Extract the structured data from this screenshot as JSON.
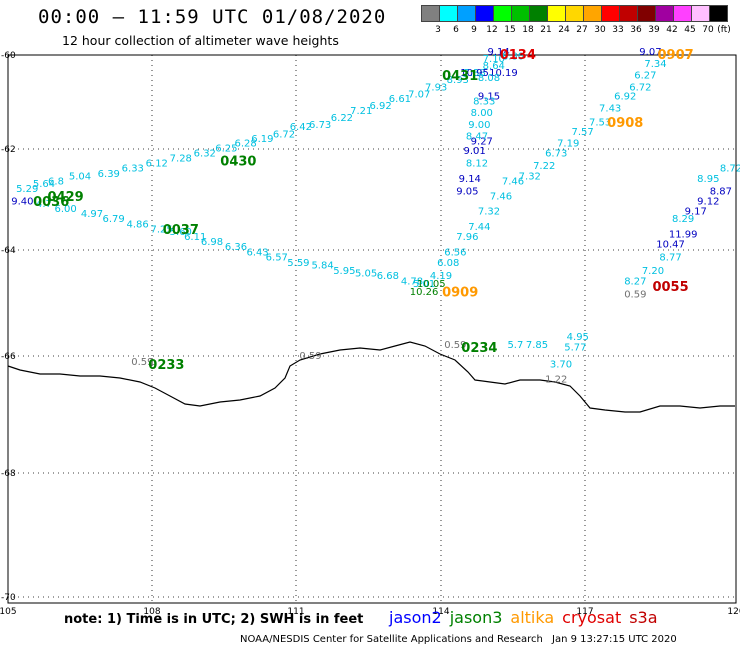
{
  "title": "00:00 – 11:59 UTC 01/08/2020",
  "subtitle": "12 hour collection of altimeter wave heights",
  "color_scale": {
    "labels": [
      "3",
      "6",
      "9",
      "12",
      "15",
      "18",
      "21",
      "24",
      "27",
      "30",
      "33",
      "36",
      "39",
      "42",
      "45",
      "70"
    ],
    "unit": "(ft)",
    "colors": [
      "#808080",
      "#00ffff",
      "#00a0ff",
      "#0000ff",
      "#00ff00",
      "#00c000",
      "#008000",
      "#ffff00",
      "#ffd700",
      "#ffa500",
      "#ff0000",
      "#c00000",
      "#800000",
      "#a000a0",
      "#ff40ff",
      "#ffc0ff",
      "#000000"
    ]
  },
  "axes": {
    "x_ticks": [
      "105",
      "108",
      "111",
      "114",
      "117",
      "120"
    ],
    "y_ticks": [
      "-60",
      "-62",
      "-64",
      "-66",
      "-68",
      "-70"
    ]
  },
  "note": "note: 1) Time is in UTC; 2) SWH is in feet",
  "legend": [
    {
      "name": "jason2",
      "color": "#0000ff"
    },
    {
      "name": "jason3",
      "color": "#008000"
    },
    {
      "name": "altika",
      "color": "#ff9900"
    },
    {
      "name": "cryosat",
      "color": "#e00000"
    },
    {
      "name": "s3a",
      "color": "#c00000"
    }
  ],
  "footer": {
    "agency": "NOAA/NESDIS Center for Satellite Applications and Research",
    "timestamp": "Jan  9 13:27:15 UTC 2020"
  },
  "time_labels": [
    {
      "text": "0134",
      "color": "#e00000",
      "lon": 115.6,
      "lat": -60.0
    },
    {
      "text": "0907",
      "color": "#ff9900",
      "lon": 118.8,
      "lat": -60.0
    },
    {
      "text": "0431",
      "color": "#008000",
      "lon": 114.4,
      "lat": -60.45
    },
    {
      "text": "0908",
      "color": "#ff9900",
      "lon": 117.8,
      "lat": -61.45
    },
    {
      "text": "0430",
      "color": "#008000",
      "lon": 109.8,
      "lat": -62.25
    },
    {
      "text": "0429",
      "color": "#008000",
      "lon": 106.2,
      "lat": -62.95
    },
    {
      "text": "0036",
      "color": "#008000",
      "lon": 105.9,
      "lat": -63.05
    },
    {
      "text": "0037",
      "color": "#008000",
      "lon": 108.6,
      "lat": -63.6
    },
    {
      "text": "0909",
      "color": "#ff9900",
      "lon": 114.4,
      "lat": -64.8
    },
    {
      "text": "0055",
      "color": "#c00000",
      "lon": 118.7,
      "lat": -64.7
    },
    {
      "text": "0234",
      "color": "#008000",
      "lon": 114.8,
      "lat": -65.85
    },
    {
      "text": "0233",
      "color": "#008000",
      "lon": 108.3,
      "lat": -66.15
    }
  ],
  "tracks": [
    {
      "color": "#00c0e0",
      "points": [
        {
          "lon": 105.4,
          "lat": -62.85,
          "v": "5.29"
        },
        {
          "lon": 105.75,
          "lat": -62.75,
          "v": "5.64"
        },
        {
          "lon": 106.0,
          "lat": -62.7,
          "v": "6.8"
        },
        {
          "lon": 106.5,
          "lat": -62.6,
          "v": "5.04"
        },
        {
          "lon": 107.1,
          "lat": -62.55,
          "v": "6.39"
        },
        {
          "lon": 107.6,
          "lat": -62.45,
          "v": "6.33"
        },
        {
          "lon": 108.1,
          "lat": -62.35,
          "v": "6.12"
        },
        {
          "lon": 108.6,
          "lat": -62.25,
          "v": "7.28"
        },
        {
          "lon": 109.1,
          "lat": -62.15,
          "v": "6.32"
        },
        {
          "lon": 109.55,
          "lat": -62.05,
          "v": "6.25"
        },
        {
          "lon": 109.95,
          "lat": -61.95,
          "v": "6.28"
        },
        {
          "lon": 110.3,
          "lat": -61.85,
          "v": "6.19"
        },
        {
          "lon": 110.75,
          "lat": -61.75,
          "v": "6.72"
        },
        {
          "lon": 111.1,
          "lat": -61.6,
          "v": "6.42"
        },
        {
          "lon": 111.5,
          "lat": -61.55,
          "v": "6.73"
        },
        {
          "lon": 111.95,
          "lat": -61.4,
          "v": "6.22"
        },
        {
          "lon": 112.35,
          "lat": -61.25,
          "v": "7.21"
        },
        {
          "lon": 112.75,
          "lat": -61.15,
          "v": "6.92"
        },
        {
          "lon": 113.15,
          "lat": -61.0,
          "v": "6.61"
        },
        {
          "lon": 113.55,
          "lat": -60.9,
          "v": "7.07"
        },
        {
          "lon": 113.9,
          "lat": -60.75,
          "v": "7.93"
        },
        {
          "lon": 114.35,
          "lat": -60.6,
          "v": "8.93"
        },
        {
          "lon": 114.7,
          "lat": -60.45,
          "v": "7.38"
        }
      ]
    },
    {
      "color": "#0000c0",
      "points": [
        {
          "lon": 105.3,
          "lat": -63.1,
          "v": "9.40"
        },
        {
          "lon": 115.2,
          "lat": -60.0,
          "v": "9.14"
        },
        {
          "lon": 114.7,
          "lat": -60.45,
          "v": "10.95"
        },
        {
          "lon": 115.3,
          "lat": -60.45,
          "v": "10.19"
        },
        {
          "lon": 115.0,
          "lat": -60.95,
          "v": "9.15"
        },
        {
          "lon": 114.85,
          "lat": -61.9,
          "v": "9.27"
        },
        {
          "lon": 114.7,
          "lat": -62.1,
          "v": "9.01"
        },
        {
          "lon": 114.6,
          "lat": -62.65,
          "v": "9.14"
        },
        {
          "lon": 114.55,
          "lat": -62.9,
          "v": "9.05"
        },
        {
          "lon": 118.3,
          "lat": -60.0,
          "v": "9.07"
        }
      ]
    },
    {
      "color": "#00c0e0",
      "points": [
        {
          "lon": 105.75,
          "lat": -63.15,
          "v": "4.7"
        },
        {
          "lon": 106.2,
          "lat": -63.25,
          "v": "6.00"
        },
        {
          "lon": 106.75,
          "lat": -63.35,
          "v": "4.97"
        },
        {
          "lon": 107.2,
          "lat": -63.45,
          "v": "6.79"
        },
        {
          "lon": 107.7,
          "lat": -63.55,
          "v": "4.86"
        },
        {
          "lon": 108.2,
          "lat": -63.65,
          "v": "7.25"
        },
        {
          "lon": 108.6,
          "lat": -63.7,
          "v": "5.60"
        },
        {
          "lon": 108.9,
          "lat": -63.8,
          "v": "6.11"
        },
        {
          "lon": 109.25,
          "lat": -63.9,
          "v": "6.98"
        },
        {
          "lon": 109.75,
          "lat": -64.0,
          "v": "6.36"
        },
        {
          "lon": 110.2,
          "lat": -64.1,
          "v": "6.43"
        },
        {
          "lon": 110.6,
          "lat": -64.2,
          "v": "6.57"
        },
        {
          "lon": 111.05,
          "lat": -64.3,
          "v": "5.59"
        },
        {
          "lon": 111.55,
          "lat": -64.35,
          "v": "5.84"
        },
        {
          "lon": 112.0,
          "lat": -64.45,
          "v": "5.95"
        },
        {
          "lon": 112.45,
          "lat": -64.5,
          "v": "5.05"
        },
        {
          "lon": 112.9,
          "lat": -64.55,
          "v": "6.68"
        },
        {
          "lon": 113.4,
          "lat": -64.65,
          "v": "4.78"
        },
        {
          "lon": 113.65,
          "lat": -64.7,
          "v": "5.01"
        },
        {
          "lon": 114.0,
          "lat": -64.55,
          "v": "4.19"
        }
      ]
    },
    {
      "color": "#00c0e0",
      "points": [
        {
          "lon": 115.5,
          "lat": -60.1,
          "v": "8.80"
        },
        {
          "lon": 115.1,
          "lat": -60.15,
          "v": "7.10"
        },
        {
          "lon": 115.1,
          "lat": -60.3,
          "v": "8.64"
        },
        {
          "lon": 115.0,
          "lat": -60.55,
          "v": "8.08"
        },
        {
          "lon": 114.9,
          "lat": -61.05,
          "v": "8.33"
        },
        {
          "lon": 114.85,
          "lat": -61.3,
          "v": "8.00"
        },
        {
          "lon": 114.8,
          "lat": -61.55,
          "v": "9.00"
        },
        {
          "lon": 114.75,
          "lat": -61.8,
          "v": "8.47"
        },
        {
          "lon": 114.75,
          "lat": -62.35,
          "v": "8.12"
        },
        {
          "lon": 115.5,
          "lat": -62.7,
          "v": "7.46"
        },
        {
          "lon": 115.25,
          "lat": -63.0,
          "v": "7.46"
        },
        {
          "lon": 115.0,
          "lat": -63.3,
          "v": "7.32"
        },
        {
          "lon": 114.8,
          "lat": -63.6,
          "v": "7.44"
        },
        {
          "lon": 114.55,
          "lat": -63.8,
          "v": "7.96"
        },
        {
          "lon": 114.3,
          "lat": -64.1,
          "v": "6.56"
        },
        {
          "lon": 114.15,
          "lat": -64.3,
          "v": "6.08"
        },
        {
          "lon": 118.4,
          "lat": -60.25,
          "v": "7.34"
        },
        {
          "lon": 118.2,
          "lat": -60.5,
          "v": "6.27"
        },
        {
          "lon": 118.1,
          "lat": -60.75,
          "v": "6.72"
        },
        {
          "lon": 117.8,
          "lat": -60.95,
          "v": "6.92"
        },
        {
          "lon": 117.5,
          "lat": -61.2,
          "v": "7.43"
        },
        {
          "lon": 117.3,
          "lat": -61.5,
          "v": "7.53"
        },
        {
          "lon": 116.95,
          "lat": -61.7,
          "v": "7.57"
        },
        {
          "lon": 116.65,
          "lat": -61.95,
          "v": "7.19"
        },
        {
          "lon": 116.4,
          "lat": -62.15,
          "v": "6.73"
        },
        {
          "lon": 116.15,
          "lat": -62.4,
          "v": "7.22"
        },
        {
          "lon": 115.85,
          "lat": -62.6,
          "v": "7.32"
        },
        {
          "lon": 120.2,
          "lat": -62.0,
          "v": "8"
        },
        {
          "lon": 120.15,
          "lat": -62.25,
          "v": "8"
        },
        {
          "lon": 119.9,
          "lat": -62.45,
          "v": "8.72"
        },
        {
          "lon": 119.45,
          "lat": -62.65,
          "v": "8.95"
        },
        {
          "lon": 118.95,
          "lat": -63.45,
          "v": "8.29"
        },
        {
          "lon": 118.7,
          "lat": -64.2,
          "v": "8.77"
        },
        {
          "lon": 118.35,
          "lat": -64.45,
          "v": "7.20"
        },
        {
          "lon": 118.0,
          "lat": -64.65,
          "v": "8.27"
        },
        {
          "lon": 116.85,
          "lat": -65.7,
          "v": "4.95"
        },
        {
          "lon": 116.8,
          "lat": -65.9,
          "v": "5.77"
        },
        {
          "lon": 116.5,
          "lat": -66.2,
          "v": "3.70"
        },
        {
          "lon": 115.55,
          "lat": -65.85,
          "v": "5.7"
        },
        {
          "lon": 116.0,
          "lat": -65.85,
          "v": "7.85"
        }
      ]
    },
    {
      "color": "#0000c0",
      "points": [
        {
          "lon": 119.7,
          "lat": -62.9,
          "v": "8.87"
        },
        {
          "lon": 119.45,
          "lat": -63.1,
          "v": "9.12"
        },
        {
          "lon": 119.2,
          "lat": -63.3,
          "v": "9.17"
        },
        {
          "lon": 118.95,
          "lat": -63.75,
          "v": "11.99"
        },
        {
          "lon": 118.7,
          "lat": -63.95,
          "v": "10.47"
        }
      ]
    },
    {
      "color": "#008000",
      "points": [
        {
          "lon": 113.65,
          "lat": -64.85,
          "v": "10.26"
        },
        {
          "lon": 113.8,
          "lat": -64.7,
          "v": "10.05"
        }
      ]
    },
    {
      "color": "#707070",
      "points": [
        {
          "lon": 118.0,
          "lat": -64.9,
          "v": "0.59"
        },
        {
          "lon": 107.8,
          "lat": -66.15,
          "v": "0.59"
        },
        {
          "lon": 108.0,
          "lat": -66.15,
          "v": "1"
        },
        {
          "lon": 111.3,
          "lat": -66.05,
          "v": "0.59"
        },
        {
          "lon": 114.3,
          "lat": -65.85,
          "v": "0.59"
        },
        {
          "lon": 116.4,
          "lat": -66.45,
          "v": "1.22"
        }
      ]
    }
  ]
}
